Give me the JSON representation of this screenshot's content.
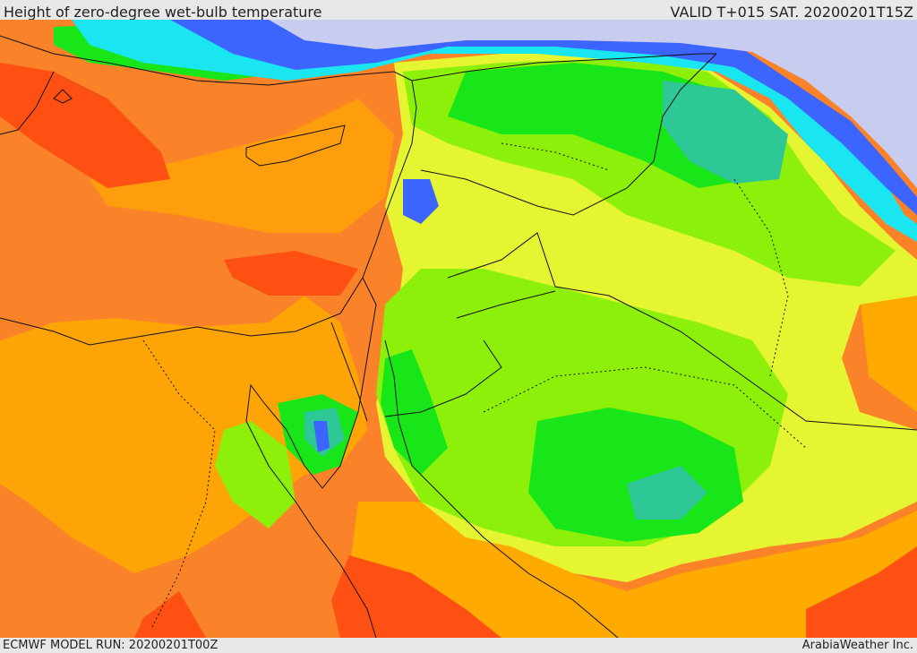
{
  "header": {
    "title": "Height of zero-degree wet-bulb temperature",
    "valid_time": "VALID T+015 SAT. 20200201T15Z"
  },
  "footer": {
    "model_run": "ECMWF MODEL RUN: 20200201T00Z",
    "credit": "ArabiaWeather Inc."
  },
  "map": {
    "colors": {
      "very_low": "#c8cdf0",
      "low_blue": "#3c64ff",
      "cyan": "#19e6f0",
      "teal": "#2dc896",
      "green": "#19e619",
      "lime": "#8cf00a",
      "yellow_green": "#e6f532",
      "orange_yellow": "#ffaa00",
      "orange": "#fa8228",
      "red_orange": "#ff5014",
      "border": "#111111"
    }
  }
}
